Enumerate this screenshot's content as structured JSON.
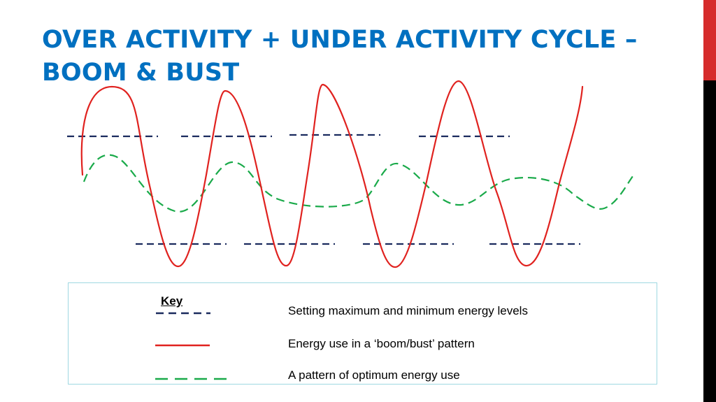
{
  "title": {
    "line1": "OVER ACTIVITY + UNDER ACTIVITY CYCLE –",
    "line2": "BOOM & BUST"
  },
  "key": {
    "title": "Key",
    "items": [
      {
        "label": "Setting maximum and minimum energy levels",
        "style": "dashed",
        "color": "#1a2a5e"
      },
      {
        "label": "Energy use in a ‘boom/bust’ pattern",
        "style": "solid",
        "color": "#e0221f"
      },
      {
        "label": "A pattern of optimum energy use",
        "style": "long-dashed",
        "color": "#1aaa4a"
      }
    ]
  },
  "colors": {
    "title": "#0070c0",
    "accent_bar_top": "#d62b2b",
    "accent_bar_bottom": "#000000",
    "energy_limit_lines": "#1a2a5e",
    "boom_bust_curve": "#e0221f",
    "optimum_curve": "#1aaa4a",
    "key_border": "#9fd8e2"
  }
}
